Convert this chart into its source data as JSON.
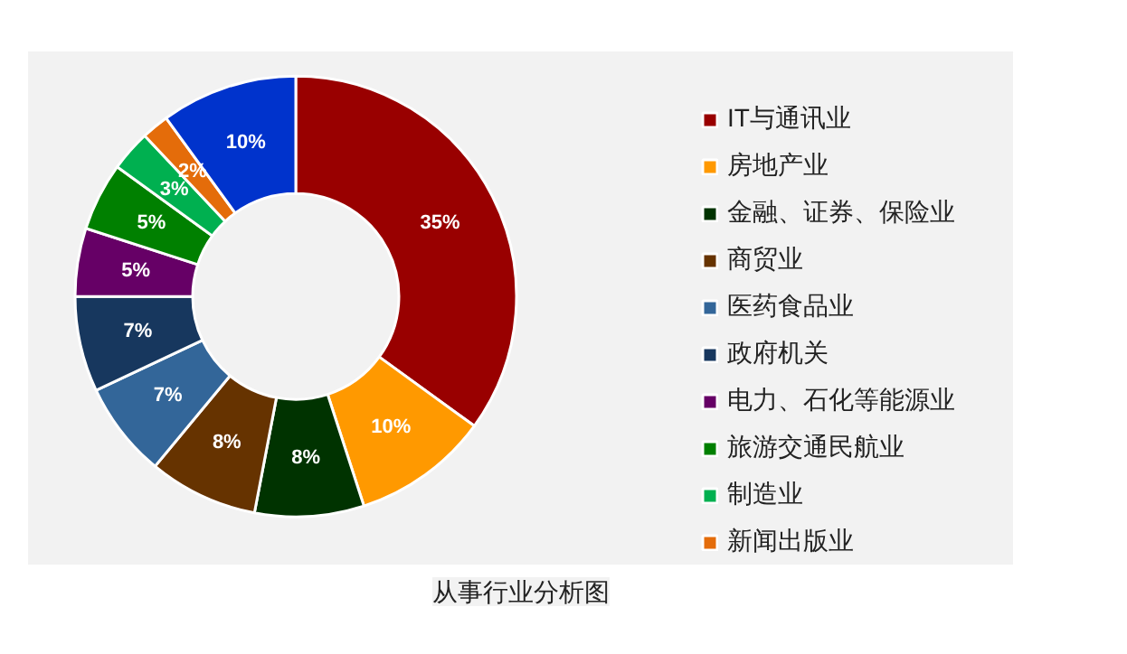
{
  "chart_data": {
    "type": "donut",
    "title": "从事行业分析图",
    "categories": [
      "IT与通讯业",
      "房地产业",
      "金融、证券、保险业",
      "商贸业",
      "医药食品业",
      "政府机关",
      "电力、石化等能源业",
      "旅游交通民航业",
      "制造业",
      "新闻出版业",
      null
    ],
    "values": [
      35,
      10,
      8,
      8,
      7,
      7,
      5,
      5,
      3,
      2,
      10
    ],
    "colors": [
      "#990000",
      "#ff9900",
      "#003300",
      "#663300",
      "#336699",
      "#17375e",
      "#660066",
      "#008000",
      "#00b050",
      "#e46c0a",
      "#0033cc"
    ],
    "value_labels": [
      "35%",
      "10%",
      "8%",
      "8%",
      "7%",
      "7%",
      "5%",
      "5%",
      "3%",
      "2%",
      "10%"
    ],
    "legend": "right"
  }
}
